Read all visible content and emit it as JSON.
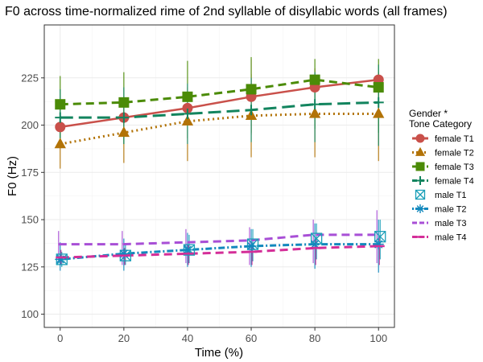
{
  "chart_data": {
    "type": "line",
    "title": "F0 across time-normalized rime of 2nd syllable of disyllabic words (all frames)",
    "xlabel": "Time (%)",
    "ylabel": "F0 (Hz)",
    "xlim": [
      -5,
      105
    ],
    "ylim": [
      93,
      253
    ],
    "x_ticks": [
      0,
      20,
      40,
      60,
      80,
      100
    ],
    "y_ticks": [
      100,
      125,
      150,
      175,
      200,
      225
    ],
    "grid": true,
    "legend_position": "right",
    "legend_title": [
      "Gender *",
      "Tone Category"
    ],
    "series": [
      {
        "name": "female T1",
        "color": "#c9504a",
        "line": "solid",
        "marker": "circle",
        "x": [
          0,
          20,
          40,
          60,
          80,
          100
        ],
        "y": [
          199,
          204,
          209,
          215,
          220,
          224
        ],
        "err_low": [
          199,
          204,
          209,
          195,
          220,
          224
        ],
        "err_high": [
          199,
          204,
          209,
          235,
          220,
          224
        ]
      },
      {
        "name": "female T2",
        "color": "#b27307",
        "line": "dotted",
        "marker": "triangle",
        "x": [
          0,
          20,
          40,
          60,
          80,
          100
        ],
        "y": [
          190,
          196,
          202,
          205,
          206,
          206
        ],
        "err_low": [
          177,
          180,
          181,
          183,
          183,
          181
        ],
        "err_high": [
          200,
          210,
          220,
          227,
          230,
          228
        ]
      },
      {
        "name": "female T3",
        "color": "#4b8b07",
        "line": "dashed",
        "marker": "square",
        "x": [
          0,
          20,
          40,
          60,
          80,
          100
        ],
        "y": [
          211,
          212,
          215,
          219,
          224,
          220
        ],
        "err_low": [
          193,
          190,
          193,
          196,
          198,
          196
        ],
        "err_high": [
          226,
          228,
          234,
          236,
          235,
          235
        ]
      },
      {
        "name": "female T4",
        "color": "#12845e",
        "line": "longdash",
        "marker": "plus",
        "x": [
          0,
          20,
          40,
          60,
          80,
          100
        ],
        "y": [
          204,
          204,
          206,
          208,
          211,
          212
        ],
        "err_low": [
          191,
          190,
          190,
          191,
          191,
          189
        ],
        "err_high": [
          219,
          220,
          222,
          225,
          228,
          232
        ]
      },
      {
        "name": "male T1",
        "color": "#1a9fb8",
        "line": "none",
        "marker": "boxx",
        "x": [
          0,
          20,
          40,
          60,
          80,
          100
        ],
        "y": [
          129,
          131,
          134,
          137,
          140,
          141
        ],
        "err_low": [
          125,
          126,
          127,
          128,
          129,
          129
        ],
        "err_high": [
          133,
          137,
          142,
          145,
          148,
          150
        ]
      },
      {
        "name": "male T2",
        "color": "#1288bd",
        "line": "dotdash",
        "marker": "asterisk",
        "x": [
          0,
          20,
          40,
          60,
          80,
          100
        ],
        "y": [
          129,
          132,
          134,
          136,
          137,
          137
        ],
        "err_low": [
          123,
          123,
          125,
          125,
          124,
          122
        ],
        "err_high": [
          138,
          140,
          143,
          145,
          148,
          150
        ]
      },
      {
        "name": "male T3",
        "color": "#a84fd6",
        "line": "dashed",
        "marker": "none",
        "x": [
          0,
          20,
          40,
          60,
          80,
          100
        ],
        "y": [
          137,
          137,
          138,
          139,
          142,
          142
        ],
        "err_low": [
          127,
          126,
          127,
          126,
          127,
          127
        ],
        "err_high": [
          144,
          144,
          145,
          146,
          150,
          155
        ]
      },
      {
        "name": "male T4",
        "color": "#d42e98",
        "line": "dashed",
        "marker": "dash",
        "x": [
          0,
          20,
          40,
          60,
          80,
          100
        ],
        "y": [
          130,
          131,
          132,
          133,
          135,
          136
        ],
        "err_low": [
          126,
          126,
          126,
          126,
          126,
          126
        ],
        "err_high": [
          134,
          135,
          137,
          138,
          140,
          141
        ]
      }
    ]
  }
}
